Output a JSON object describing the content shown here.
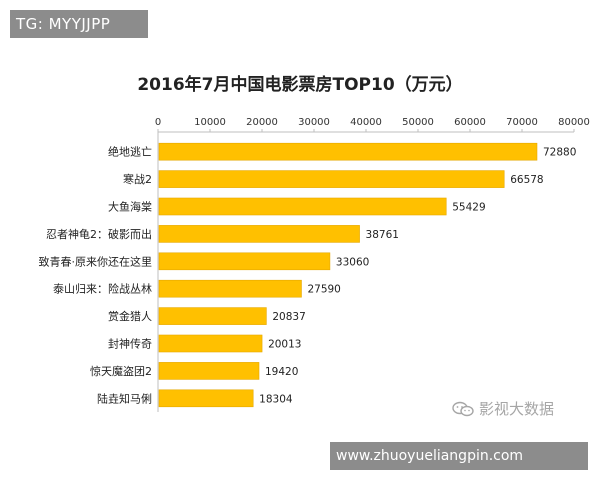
{
  "badge": {
    "text": "TG: MYYJJPP"
  },
  "watermark": {
    "icon": "wechat-icon",
    "text": "影视大数据"
  },
  "url_banner": {
    "text": "www.zhuoyueliangpin.com"
  },
  "colors": {
    "bar": "#FFC000",
    "bar_edge": "#E6A800",
    "grid": "#d9d9d9"
  },
  "chart_data": {
    "type": "bar",
    "orientation": "horizontal",
    "title": "2016年7月中国电影票房TOP10（万元）",
    "xlabel": "",
    "ylabel": "",
    "xlim": [
      0,
      80000
    ],
    "x_ticks": [
      0,
      10000,
      20000,
      30000,
      40000,
      50000,
      60000,
      70000,
      80000
    ],
    "x_tick_labels": [
      "0",
      "10000",
      "20000",
      "30000",
      "40000",
      "50000",
      "60000",
      "70000",
      "80000"
    ],
    "x_axis_position": "top",
    "grid": false,
    "categories": [
      "绝地逃亡",
      "寒战2",
      "大鱼海棠",
      "忍者神龟2：破影而出",
      "致青春·原来你还在这里",
      "泰山归来：险战丛林",
      "赏金猎人",
      "封神传奇",
      "惊天魔盗团2",
      "陆垚知马俐"
    ],
    "values": [
      72880,
      66578,
      55429,
      38761,
      33060,
      27590,
      20837,
      20013,
      19420,
      18304
    ]
  }
}
